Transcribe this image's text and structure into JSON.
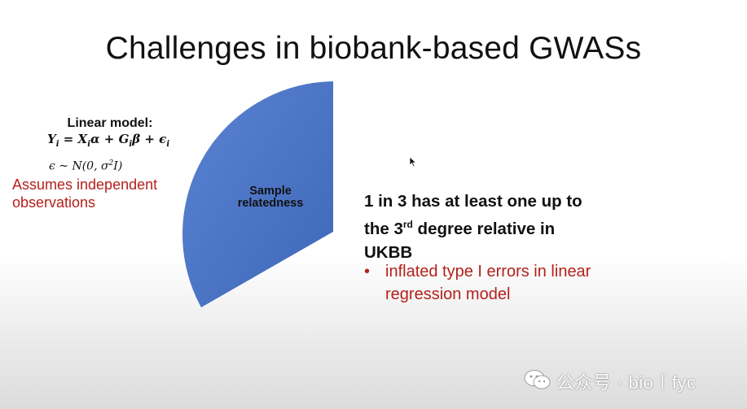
{
  "slide": {
    "title": "Challenges in biobank-based GWASs",
    "pie_label_line1": "Sample",
    "pie_label_line2": "relatedness",
    "model": {
      "title": "Linear model:",
      "eq_Y": "Y",
      "eq_i": "i",
      "eq_eq": " = ",
      "eq_X": "X",
      "eq_alpha": "α",
      "eq_plus1": " + ",
      "eq_G": "G",
      "eq_beta": "β",
      "eq_plus2": " + ",
      "eq_eps": "ϵ",
      "noise_prefix": "ϵ ~ N(0, σ",
      "noise_sup": "2",
      "noise_suffix": "I)",
      "assumes_line1": "Assumes independent",
      "assumes_line2": "observations"
    },
    "main_point": {
      "line1": "1 in 3 has at least one up to",
      "line2_pre": "the 3",
      "line2_sup": "rd",
      "line2_post": " degree relative in",
      "line3": "UKBB"
    },
    "bullet": {
      "dot": "•",
      "line1": "inflated type I errors in linear",
      "line2": "regression model"
    },
    "colors": {
      "pie_fill": "#4a72c4",
      "accent_red": "#b4211a"
    }
  },
  "watermark": {
    "icon": "wechat-icon",
    "text": "公众号 · bio丨fyc"
  }
}
